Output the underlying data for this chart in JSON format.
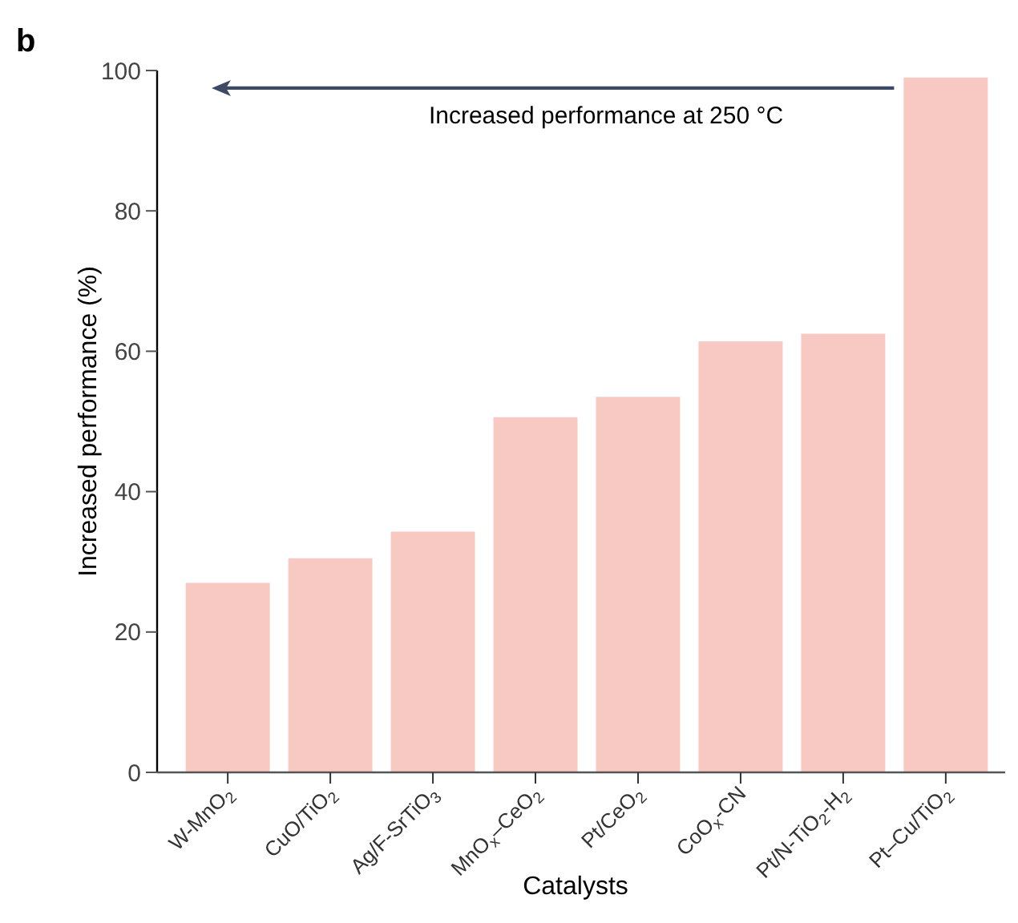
{
  "chart_data": {
    "type": "bar",
    "title": "b",
    "xlabel": "Catalysts",
    "ylabel": "Increased performance (%)",
    "categories": [
      "W-MnO$_{2}$",
      "CuO/TiO$_{2}$",
      "Ag/F-SrTiO$_{3}$",
      "MnO$_{x}$–CeO$_{2}$",
      "Pt/CeO$_{2}$",
      "CoO$_{x}$-CN",
      "Pt/N-TiO$_{2}$-H$_{2}$",
      "Pt–Cu/TiO$_{2}$"
    ],
    "values": [
      27,
      30.5,
      34.3,
      50.6,
      53.5,
      61.4,
      62.5,
      99
    ],
    "color": "#f8c8c3",
    "ylim": [
      0,
      100
    ],
    "yticks": [
      0,
      20,
      40,
      60,
      80,
      100
    ],
    "annotations": [
      "Increased performance at 250 °C"
    ]
  }
}
